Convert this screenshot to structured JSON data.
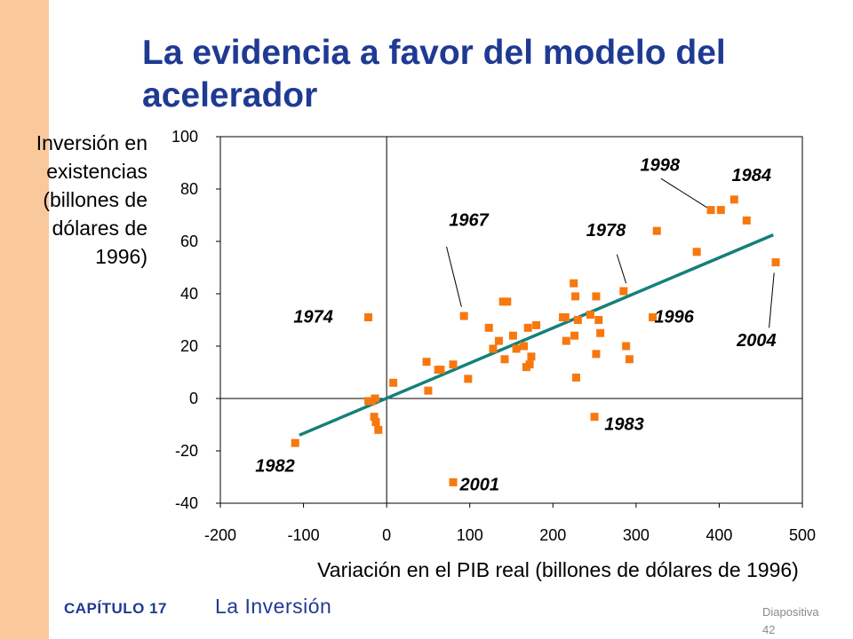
{
  "title": "La evidencia a favor del modelo del acelerador",
  "footer": {
    "chapter": "CAPÍTULO 17",
    "topic": "La Inversión",
    "slide_label": "Diapositiva",
    "slide_number": "42"
  },
  "colors": {
    "sidebar": "#f9c89b",
    "title": "#1f3a93",
    "points": "#f7780f",
    "trendline": "#15807a"
  },
  "chart_data": {
    "type": "scatter",
    "title": "",
    "xlabel": "Variación en el PIB real (billones de dólares de 1996)",
    "ylabel": "Inversión en existencias (billones de dólares de 1996)",
    "xlim": [
      -200,
      500
    ],
    "ylim": [
      -40,
      100
    ],
    "xticks": [
      -200,
      -100,
      0,
      100,
      200,
      300,
      400,
      500
    ],
    "yticks": [
      -40,
      -20,
      0,
      20,
      40,
      60,
      80,
      100
    ],
    "grid": false,
    "trendline": {
      "x": [
        -105,
        465
      ],
      "y": [
        -14,
        62.5
      ]
    },
    "points": [
      {
        "x": -110,
        "y": -17
      },
      {
        "x": -22,
        "y": 31
      },
      {
        "x": -22,
        "y": -1
      },
      {
        "x": -18,
        "y": -1
      },
      {
        "x": -14,
        "y": 0
      },
      {
        "x": -15,
        "y": -7
      },
      {
        "x": -13,
        "y": -9
      },
      {
        "x": -10,
        "y": -12
      },
      {
        "x": 8,
        "y": 6
      },
      {
        "x": 48,
        "y": 14
      },
      {
        "x": 50,
        "y": 3
      },
      {
        "x": 62,
        "y": 11
      },
      {
        "x": 65,
        "y": 11
      },
      {
        "x": 80,
        "y": 13
      },
      {
        "x": 80,
        "y": -32
      },
      {
        "x": 93,
        "y": 31.5
      },
      {
        "x": 98,
        "y": 7.5
      },
      {
        "x": 123,
        "y": 27
      },
      {
        "x": 128,
        "y": 19
      },
      {
        "x": 135,
        "y": 22
      },
      {
        "x": 140,
        "y": 37
      },
      {
        "x": 142,
        "y": 15
      },
      {
        "x": 145,
        "y": 37
      },
      {
        "x": 152,
        "y": 24
      },
      {
        "x": 156,
        "y": 19
      },
      {
        "x": 165,
        "y": 20
      },
      {
        "x": 168,
        "y": 12
      },
      {
        "x": 170,
        "y": 27
      },
      {
        "x": 172,
        "y": 13
      },
      {
        "x": 174,
        "y": 16
      },
      {
        "x": 180,
        "y": 28
      },
      {
        "x": 212,
        "y": 31
      },
      {
        "x": 215,
        "y": 31
      },
      {
        "x": 216,
        "y": 22
      },
      {
        "x": 225,
        "y": 44
      },
      {
        "x": 226,
        "y": 24
      },
      {
        "x": 227,
        "y": 39
      },
      {
        "x": 228,
        "y": 8
      },
      {
        "x": 230,
        "y": 30
      },
      {
        "x": 245,
        "y": 32
      },
      {
        "x": 250,
        "y": -7
      },
      {
        "x": 252,
        "y": 39
      },
      {
        "x": 252,
        "y": 17
      },
      {
        "x": 255,
        "y": 30
      },
      {
        "x": 257,
        "y": 25
      },
      {
        "x": 285,
        "y": 41
      },
      {
        "x": 288,
        "y": 20
      },
      {
        "x": 292,
        "y": 15
      },
      {
        "x": 320,
        "y": 31
      },
      {
        "x": 325,
        "y": 64
      },
      {
        "x": 373,
        "y": 56
      },
      {
        "x": 390,
        "y": 72
      },
      {
        "x": 402,
        "y": 72
      },
      {
        "x": 418,
        "y": 76
      },
      {
        "x": 433,
        "y": 68
      },
      {
        "x": 468,
        "y": 52
      }
    ],
    "annotations": [
      {
        "label": "1998",
        "x": 305,
        "y": 87,
        "line": [
          330,
          84,
          385,
          73
        ]
      },
      {
        "label": "1984",
        "x": 415,
        "y": 83
      },
      {
        "label": "1967",
        "x": 75,
        "y": 66,
        "line": [
          72,
          58,
          90,
          35
        ]
      },
      {
        "label": "1978",
        "x": 240,
        "y": 62,
        "line": [
          277,
          55,
          288,
          44
        ]
      },
      {
        "label": "1974",
        "x": -112,
        "y": 29
      },
      {
        "label": "1996",
        "x": 322,
        "y": 29
      },
      {
        "label": "2004",
        "x": 421,
        "y": 20,
        "line": [
          460,
          27,
          466,
          48
        ]
      },
      {
        "label": "1983",
        "x": 262,
        "y": -12
      },
      {
        "label": "1982",
        "x": -158,
        "y": -28
      },
      {
        "label": "2001",
        "x": 88,
        "y": -35
      }
    ]
  }
}
